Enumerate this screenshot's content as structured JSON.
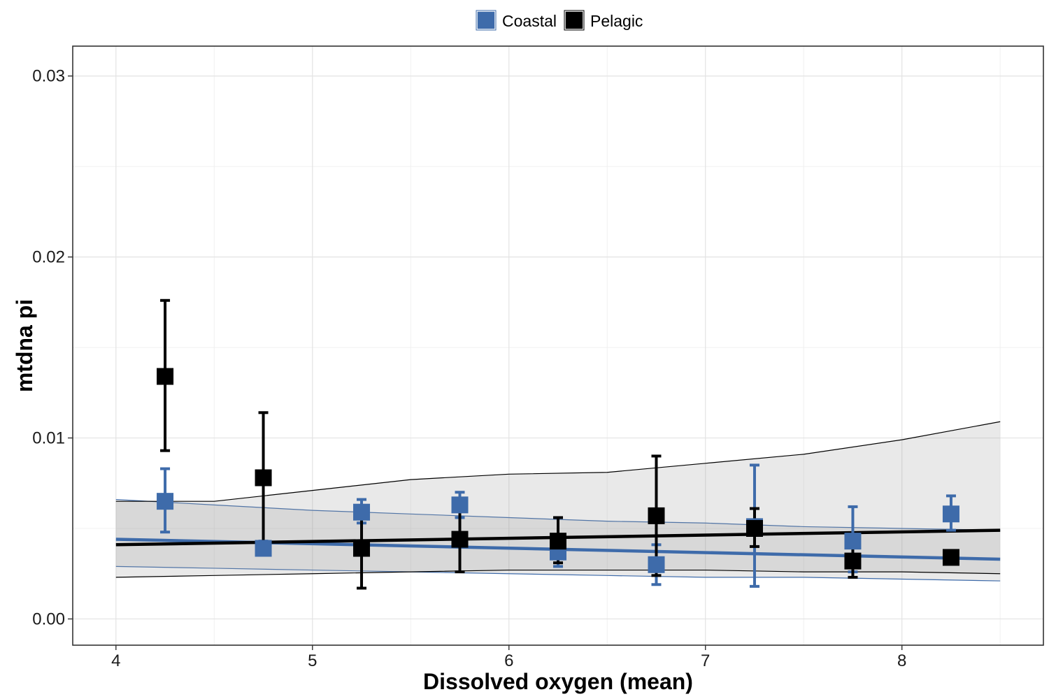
{
  "chart_data": {
    "type": "scatter",
    "title": "",
    "xlabel": "Dissolved oxygen (mean)",
    "ylabel": "mtdna pi",
    "xlim": [
      3.78,
      8.72
    ],
    "ylim": [
      -0.00145,
      0.03165
    ],
    "x_ticks": [
      4,
      5,
      6,
      7,
      8
    ],
    "x_tick_labels": [
      "4",
      "5",
      "6",
      "7",
      "8"
    ],
    "y_ticks": [
      0,
      0.01,
      0.02,
      0.03
    ],
    "y_tick_labels": [
      "0.00",
      "0.01",
      "0.02",
      "0.03"
    ],
    "grid": true,
    "legend_position": "top",
    "series": [
      {
        "name": "Coastal",
        "color": "#3E6BAA",
        "points": [
          {
            "x": 4.25,
            "y": 0.0065,
            "ymin": 0.0048,
            "ymax": 0.0083
          },
          {
            "x": 4.75,
            "y": 0.0039,
            "ymin": 0.0036,
            "ymax": 0.0043
          },
          {
            "x": 5.25,
            "y": 0.0059,
            "ymin": 0.0053,
            "ymax": 0.0066
          },
          {
            "x": 5.75,
            "y": 0.0063,
            "ymin": 0.0056,
            "ymax": 0.007
          },
          {
            "x": 6.25,
            "y": 0.0037,
            "ymin": 0.0029,
            "ymax": 0.0045
          },
          {
            "x": 6.75,
            "y": 0.003,
            "ymin": 0.0019,
            "ymax": 0.0041
          },
          {
            "x": 7.25,
            "y": 0.0051,
            "ymin": 0.0018,
            "ymax": 0.0085
          },
          {
            "x": 7.75,
            "y": 0.0043,
            "ymin": 0.0026,
            "ymax": 0.0062
          },
          {
            "x": 8.25,
            "y": 0.0058,
            "ymin": 0.0049,
            "ymax": 0.0068
          }
        ],
        "fit": {
          "x": [
            4.0,
            8.5
          ],
          "y": [
            0.0044,
            0.0033
          ]
        },
        "ribbon": {
          "x": [
            4.0,
            4.5,
            5.0,
            5.5,
            6.0,
            6.5,
            7.0,
            7.5,
            8.0,
            8.5
          ],
          "lower": [
            0.0029,
            0.0028,
            0.0027,
            0.0026,
            0.0025,
            0.0024,
            0.0023,
            0.0023,
            0.0022,
            0.0021
          ],
          "upper": [
            0.0066,
            0.0063,
            0.006,
            0.0058,
            0.0056,
            0.0054,
            0.0053,
            0.0051,
            0.005,
            0.0049
          ]
        }
      },
      {
        "name": "Pelagic",
        "color": "#000000",
        "points": [
          {
            "x": 4.25,
            "y": 0.0134,
            "ymin": 0.0093,
            "ymax": 0.0176
          },
          {
            "x": 4.75,
            "y": 0.0078,
            "ymin": 0.004,
            "ymax": 0.0114
          },
          {
            "x": 5.25,
            "y": 0.0039,
            "ymin": 0.0017,
            "ymax": 0.0061
          },
          {
            "x": 5.75,
            "y": 0.0044,
            "ymin": 0.0026,
            "ymax": 0.0061
          },
          {
            "x": 6.25,
            "y": 0.0043,
            "ymin": 0.0031,
            "ymax": 0.0056
          },
          {
            "x": 6.75,
            "y": 0.0057,
            "ymin": 0.0024,
            "ymax": 0.009
          },
          {
            "x": 7.25,
            "y": 0.005,
            "ymin": 0.004,
            "ymax": 0.0061
          },
          {
            "x": 7.75,
            "y": 0.0032,
            "ymin": 0.0023,
            "ymax": 0.0041
          },
          {
            "x": 8.25,
            "y": 0.0034,
            "ymin": 0.0034,
            "ymax": 0.0034
          }
        ],
        "fit": {
          "x": [
            4.0,
            8.5
          ],
          "y": [
            0.0041,
            0.0049
          ]
        },
        "ribbon": {
          "x": [
            4.0,
            4.5,
            5.0,
            5.5,
            6.0,
            6.5,
            7.0,
            7.5,
            8.0,
            8.5
          ],
          "lower": [
            0.0023,
            0.0024,
            0.0025,
            0.0026,
            0.0027,
            0.0027,
            0.0027,
            0.0026,
            0.0026,
            0.0025
          ],
          "upper": [
            0.0065,
            0.0065,
            0.0071,
            0.0077,
            0.008,
            0.0081,
            0.0086,
            0.0091,
            0.0099,
            0.0109
          ]
        }
      }
    ]
  }
}
